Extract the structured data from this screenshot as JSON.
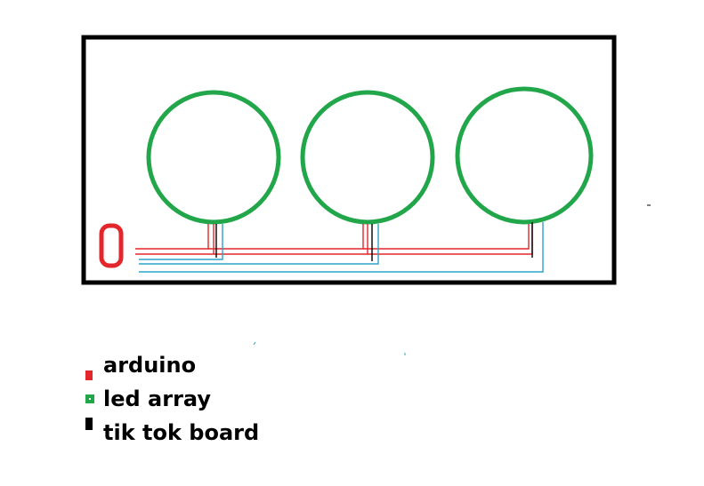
{
  "colors": {
    "background": "#ffffff",
    "border": "#000000",
    "arduino": "#e3262b",
    "led_array": "#22a64a",
    "tik_tok_board": "#000000",
    "data_wire": "#2ea3c8",
    "text": "#000000"
  },
  "components": {
    "arduino": {
      "color_key": "arduino"
    },
    "led_rings": [
      {
        "color_key": "led_array"
      },
      {
        "color_key": "led_array"
      },
      {
        "color_key": "led_array"
      }
    ]
  },
  "legend": {
    "items": [
      {
        "label": "arduino",
        "color_key": "arduino",
        "marker": "solid"
      },
      {
        "label": "led array",
        "color_key": "led_array",
        "marker": "dotted"
      },
      {
        "label": "tik tok board",
        "color_key": "tik_tok_board",
        "marker": "solid"
      }
    ]
  }
}
